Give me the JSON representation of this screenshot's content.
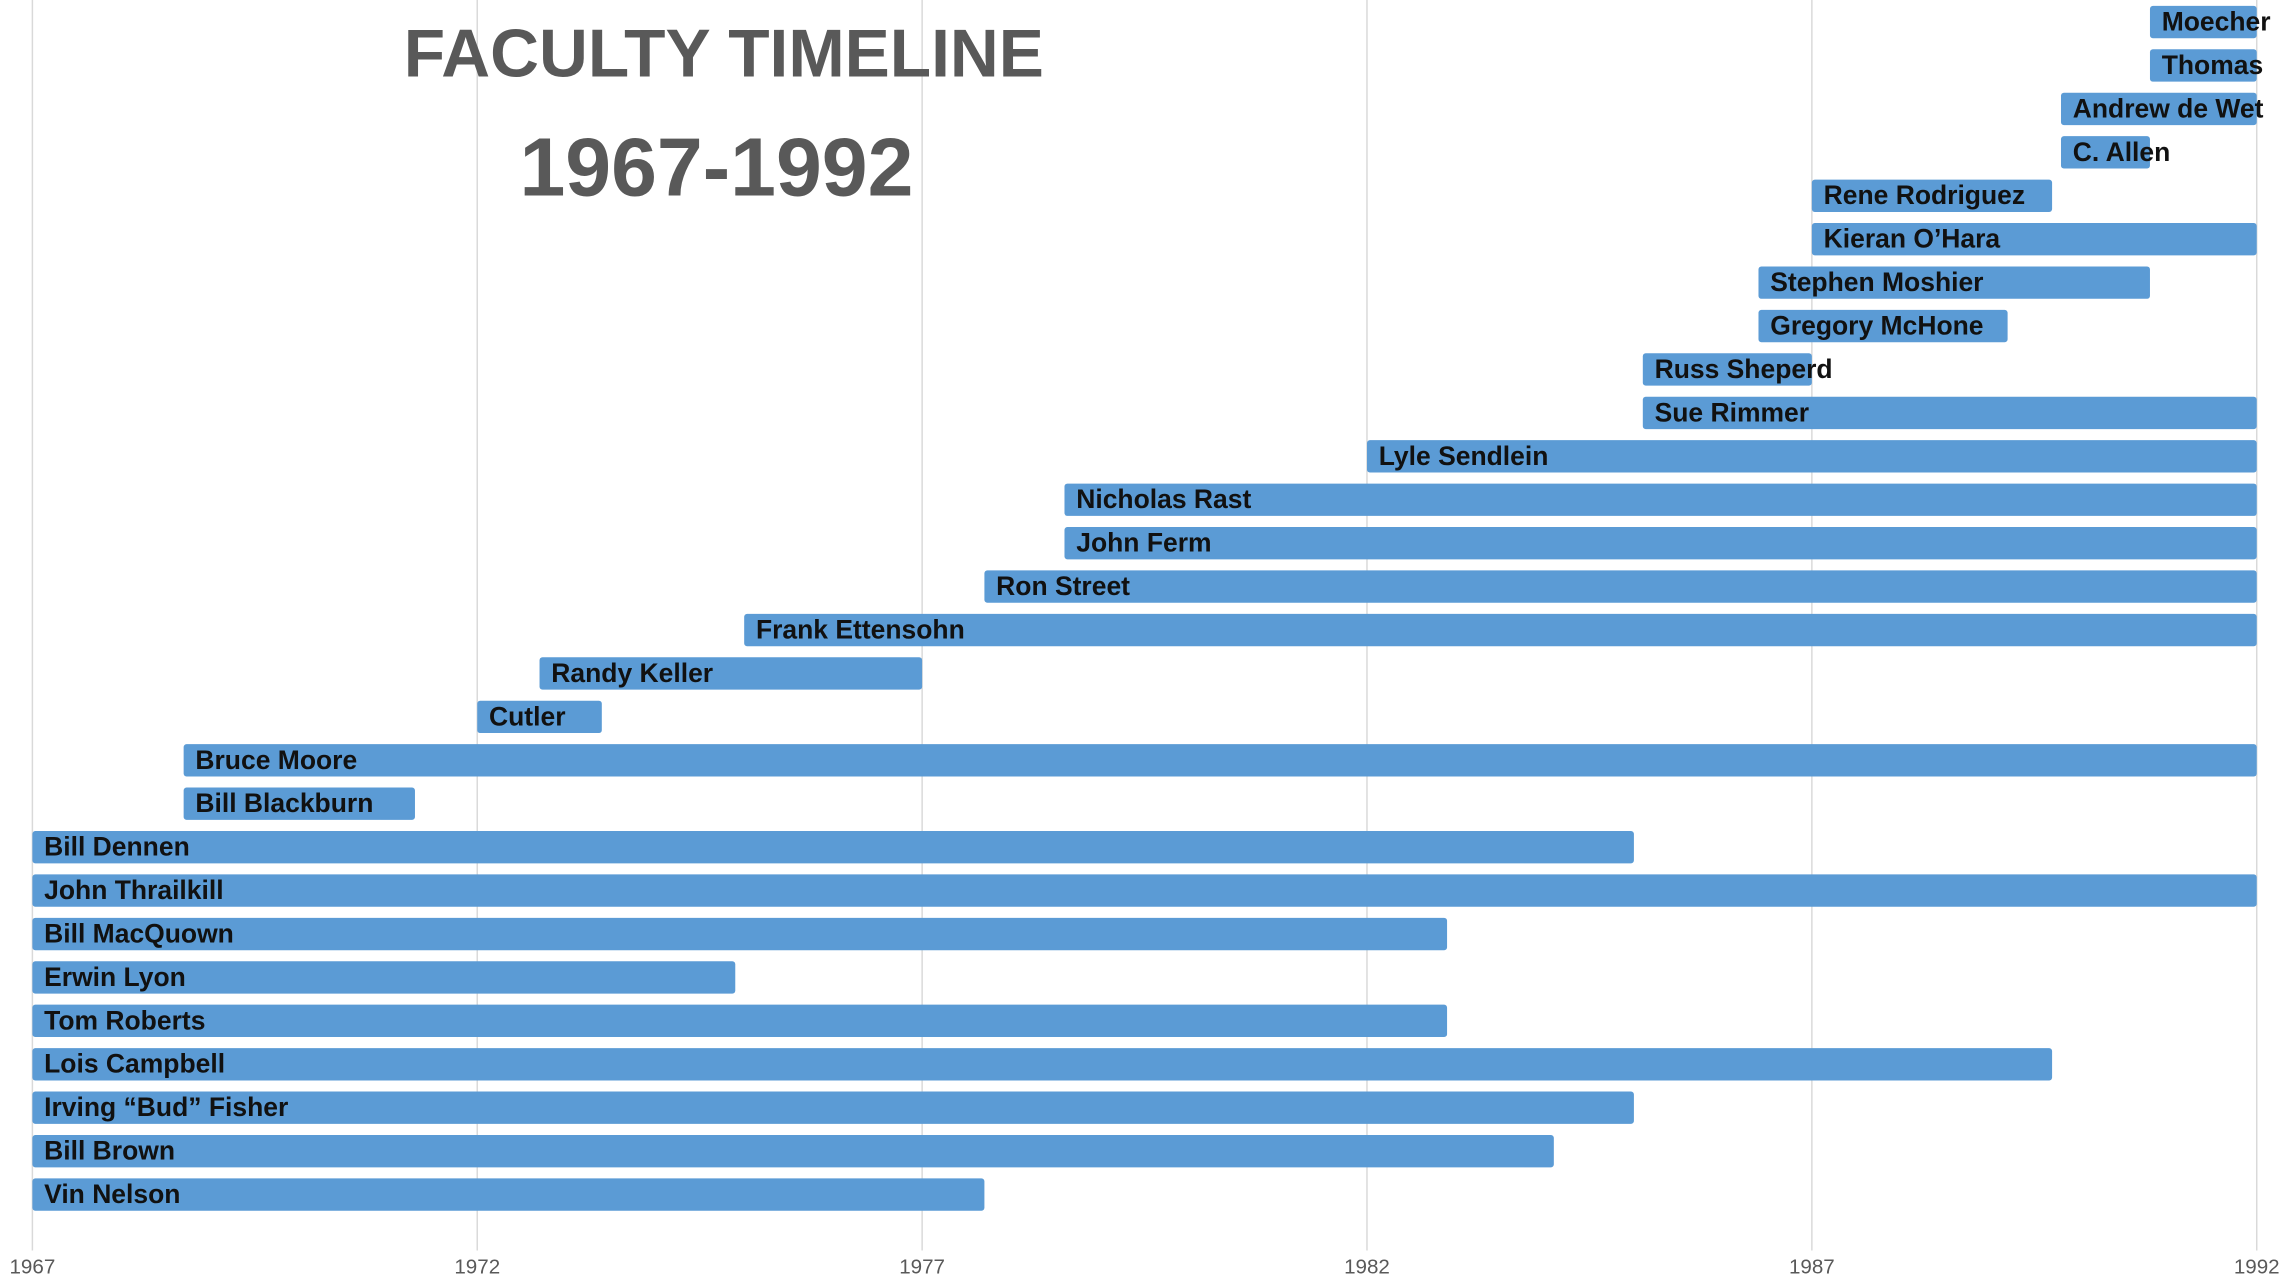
{
  "chart_data": {
    "type": "timeline",
    "title": "FACULTY TIMELINE",
    "subtitle": "1967-1992",
    "color": "#5b9bd5",
    "grid": true,
    "xlim": [
      1967,
      1992
    ],
    "xticks": [
      1967,
      1972,
      1977,
      1982,
      1987,
      1992
    ],
    "bars": [
      {
        "name": "Moecher",
        "start": 1990.8,
        "end": 1992
      },
      {
        "name": "Thomas",
        "start": 1990.8,
        "end": 1992
      },
      {
        "name": "Andrew de Wet",
        "start": 1989.8,
        "end": 1992
      },
      {
        "name": "C. Allen",
        "start": 1989.8,
        "end": 1990.8
      },
      {
        "name": "Rene Rodriguez",
        "start": 1987,
        "end": 1989.7
      },
      {
        "name": "Kieran O’Hara",
        "start": 1987,
        "end": 1992
      },
      {
        "name": "Stephen Moshier",
        "start": 1986.4,
        "end": 1990.8
      },
      {
        "name": "Gregory McHone",
        "start": 1986.4,
        "end": 1989.2
      },
      {
        "name": "Russ Sheperd",
        "start": 1985.1,
        "end": 1987
      },
      {
        "name": "Sue Rimmer",
        "start": 1985.1,
        "end": 1992
      },
      {
        "name": "Lyle Sendlein",
        "start": 1982,
        "end": 1992
      },
      {
        "name": "Nicholas Rast",
        "start": 1978.6,
        "end": 1992
      },
      {
        "name": "John Ferm",
        "start": 1978.6,
        "end": 1992
      },
      {
        "name": "Ron Street",
        "start": 1977.7,
        "end": 1992
      },
      {
        "name": "Frank Ettensohn",
        "start": 1975,
        "end": 1992
      },
      {
        "name": "Randy Keller",
        "start": 1972.7,
        "end": 1977
      },
      {
        "name": "Cutler",
        "start": 1972,
        "end": 1973.4
      },
      {
        "name": "Bruce Moore",
        "start": 1968.7,
        "end": 1992
      },
      {
        "name": "Bill Blackburn",
        "start": 1968.7,
        "end": 1971.3
      },
      {
        "name": "Bill Dennen",
        "start": 1967,
        "end": 1985
      },
      {
        "name": "John Thrailkill",
        "start": 1967,
        "end": 1992
      },
      {
        "name": "Bill MacQuown",
        "start": 1967,
        "end": 1982.9
      },
      {
        "name": "Erwin Lyon",
        "start": 1967,
        "end": 1974.9
      },
      {
        "name": "Tom Roberts",
        "start": 1967,
        "end": 1982.9
      },
      {
        "name": "Lois Campbell",
        "start": 1967,
        "end": 1989.7
      },
      {
        "name": "Irving “Bud” Fisher",
        "start": 1967,
        "end": 1985
      },
      {
        "name": "Bill Brown",
        "start": 1967,
        "end": 1984.1
      },
      {
        "name": "Vin Nelson",
        "start": 1967,
        "end": 1977.7
      }
    ]
  }
}
